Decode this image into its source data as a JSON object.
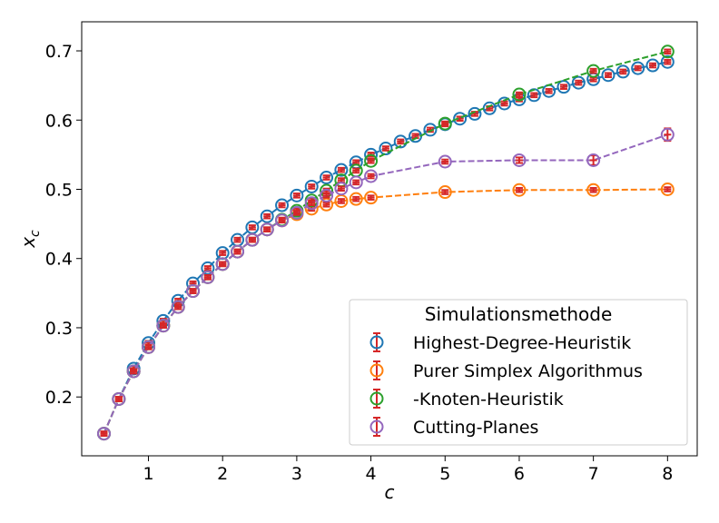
{
  "chart_data": {
    "type": "scatter",
    "xlabel": "c",
    "ylabel": "x",
    "ylabel_sub": "c",
    "xlim": [
      0.1,
      8.4
    ],
    "ylim": [
      0.115,
      0.742
    ],
    "xticks": [
      1,
      2,
      3,
      4,
      5,
      6,
      7,
      8
    ],
    "yticks": [
      0.2,
      0.3,
      0.4,
      0.5,
      0.6,
      0.7
    ],
    "xtick_labels": [
      "1",
      "2",
      "3",
      "4",
      "5",
      "6",
      "7",
      "8"
    ],
    "ytick_labels": [
      "0.2",
      "0.3",
      "0.4",
      "0.5",
      "0.6",
      "0.7"
    ],
    "legend": {
      "title": "Simulationsmethode",
      "placement": "lower-right"
    },
    "errorbar_color": "#d62728",
    "series": [
      {
        "name": "Highest-Degree-Heuristik",
        "color": "#1f77b4",
        "x": [
          0.4,
          0.6,
          0.8,
          1.0,
          1.2,
          1.4,
          1.6,
          1.8,
          2.0,
          2.2,
          2.4,
          2.6,
          2.8,
          3.0,
          3.2,
          3.4,
          3.6,
          3.8,
          4.0,
          4.2,
          4.4,
          4.6,
          4.8,
          5.0,
          5.2,
          5.4,
          5.6,
          5.8,
          6.0,
          6.2,
          6.4,
          6.6,
          6.8,
          7.0,
          7.2,
          7.4,
          7.6,
          7.8,
          8.0
        ],
        "y": [
          0.147,
          0.197,
          0.241,
          0.278,
          0.31,
          0.339,
          0.364,
          0.386,
          0.408,
          0.427,
          0.445,
          0.461,
          0.477,
          0.491,
          0.504,
          0.517,
          0.528,
          0.539,
          0.55,
          0.559,
          0.569,
          0.577,
          0.586,
          0.594,
          0.602,
          0.609,
          0.617,
          0.624,
          0.63,
          0.636,
          0.642,
          0.648,
          0.654,
          0.659,
          0.665,
          0.67,
          0.675,
          0.679,
          0.684
        ],
        "err": [
          0.003,
          0.003,
          0.003,
          0.003,
          0.003,
          0.003,
          0.003,
          0.003,
          0.003,
          0.003,
          0.003,
          0.003,
          0.003,
          0.003,
          0.003,
          0.003,
          0.003,
          0.003,
          0.003,
          0.003,
          0.003,
          0.003,
          0.003,
          0.003,
          0.003,
          0.003,
          0.003,
          0.003,
          0.003,
          0.003,
          0.003,
          0.003,
          0.003,
          0.003,
          0.003,
          0.003,
          0.003,
          0.003,
          0.003
        ]
      },
      {
        "name": "Purer Simplex Algorithmus",
        "color": "#ff7f0e",
        "x": [
          0.4,
          0.6,
          0.8,
          1.0,
          1.2,
          1.4,
          1.6,
          1.8,
          2.0,
          2.2,
          2.4,
          2.6,
          2.8,
          3.0,
          3.2,
          3.4,
          3.6,
          3.8,
          4.0,
          5.0,
          6.0,
          7.0,
          8.0
        ],
        "y": [
          0.147,
          0.197,
          0.237,
          0.272,
          0.303,
          0.33,
          0.353,
          0.373,
          0.392,
          0.41,
          0.427,
          0.442,
          0.455,
          0.464,
          0.472,
          0.478,
          0.483,
          0.486,
          0.488,
          0.496,
          0.499,
          0.499,
          0.5
        ],
        "err": [
          0.003,
          0.003,
          0.003,
          0.003,
          0.003,
          0.003,
          0.003,
          0.003,
          0.003,
          0.003,
          0.003,
          0.003,
          0.003,
          0.003,
          0.003,
          0.003,
          0.003,
          0.003,
          0.003,
          0.003,
          0.003,
          0.003,
          0.003
        ]
      },
      {
        "name": "-Knoten-Heuristik",
        "color": "#2ca02c",
        "x": [
          0.4,
          0.6,
          0.8,
          1.0,
          1.2,
          1.4,
          1.6,
          1.8,
          2.0,
          2.2,
          2.4,
          2.6,
          2.8,
          3.0,
          3.2,
          3.4,
          3.6,
          3.8,
          4.0,
          5.0,
          6.0,
          7.0,
          8.0
        ],
        "y": [
          0.147,
          0.197,
          0.237,
          0.272,
          0.303,
          0.33,
          0.353,
          0.373,
          0.392,
          0.41,
          0.427,
          0.442,
          0.456,
          0.469,
          0.484,
          0.498,
          0.513,
          0.527,
          0.541,
          0.595,
          0.637,
          0.671,
          0.699
        ],
        "err": [
          0.003,
          0.003,
          0.003,
          0.003,
          0.003,
          0.003,
          0.003,
          0.003,
          0.003,
          0.003,
          0.003,
          0.003,
          0.003,
          0.003,
          0.003,
          0.003,
          0.003,
          0.003,
          0.003,
          0.003,
          0.003,
          0.003,
          0.003
        ]
      },
      {
        "name": "Cutting-Planes",
        "color": "#9467bd",
        "x": [
          0.4,
          0.6,
          0.8,
          1.0,
          1.2,
          1.4,
          1.6,
          1.8,
          2.0,
          2.2,
          2.4,
          2.6,
          2.8,
          3.0,
          3.2,
          3.4,
          3.6,
          3.8,
          4.0,
          5.0,
          6.0,
          7.0,
          8.0
        ],
        "y": [
          0.147,
          0.197,
          0.237,
          0.272,
          0.303,
          0.33,
          0.353,
          0.373,
          0.392,
          0.41,
          0.427,
          0.442,
          0.455,
          0.466,
          0.48,
          0.491,
          0.501,
          0.51,
          0.519,
          0.54,
          0.542,
          0.542,
          0.579
        ],
        "err": [
          0.003,
          0.003,
          0.003,
          0.003,
          0.003,
          0.003,
          0.003,
          0.003,
          0.003,
          0.003,
          0.003,
          0.003,
          0.003,
          0.003,
          0.003,
          0.003,
          0.003,
          0.003,
          0.003,
          0.003,
          0.004,
          0.007,
          0.009
        ]
      }
    ]
  }
}
